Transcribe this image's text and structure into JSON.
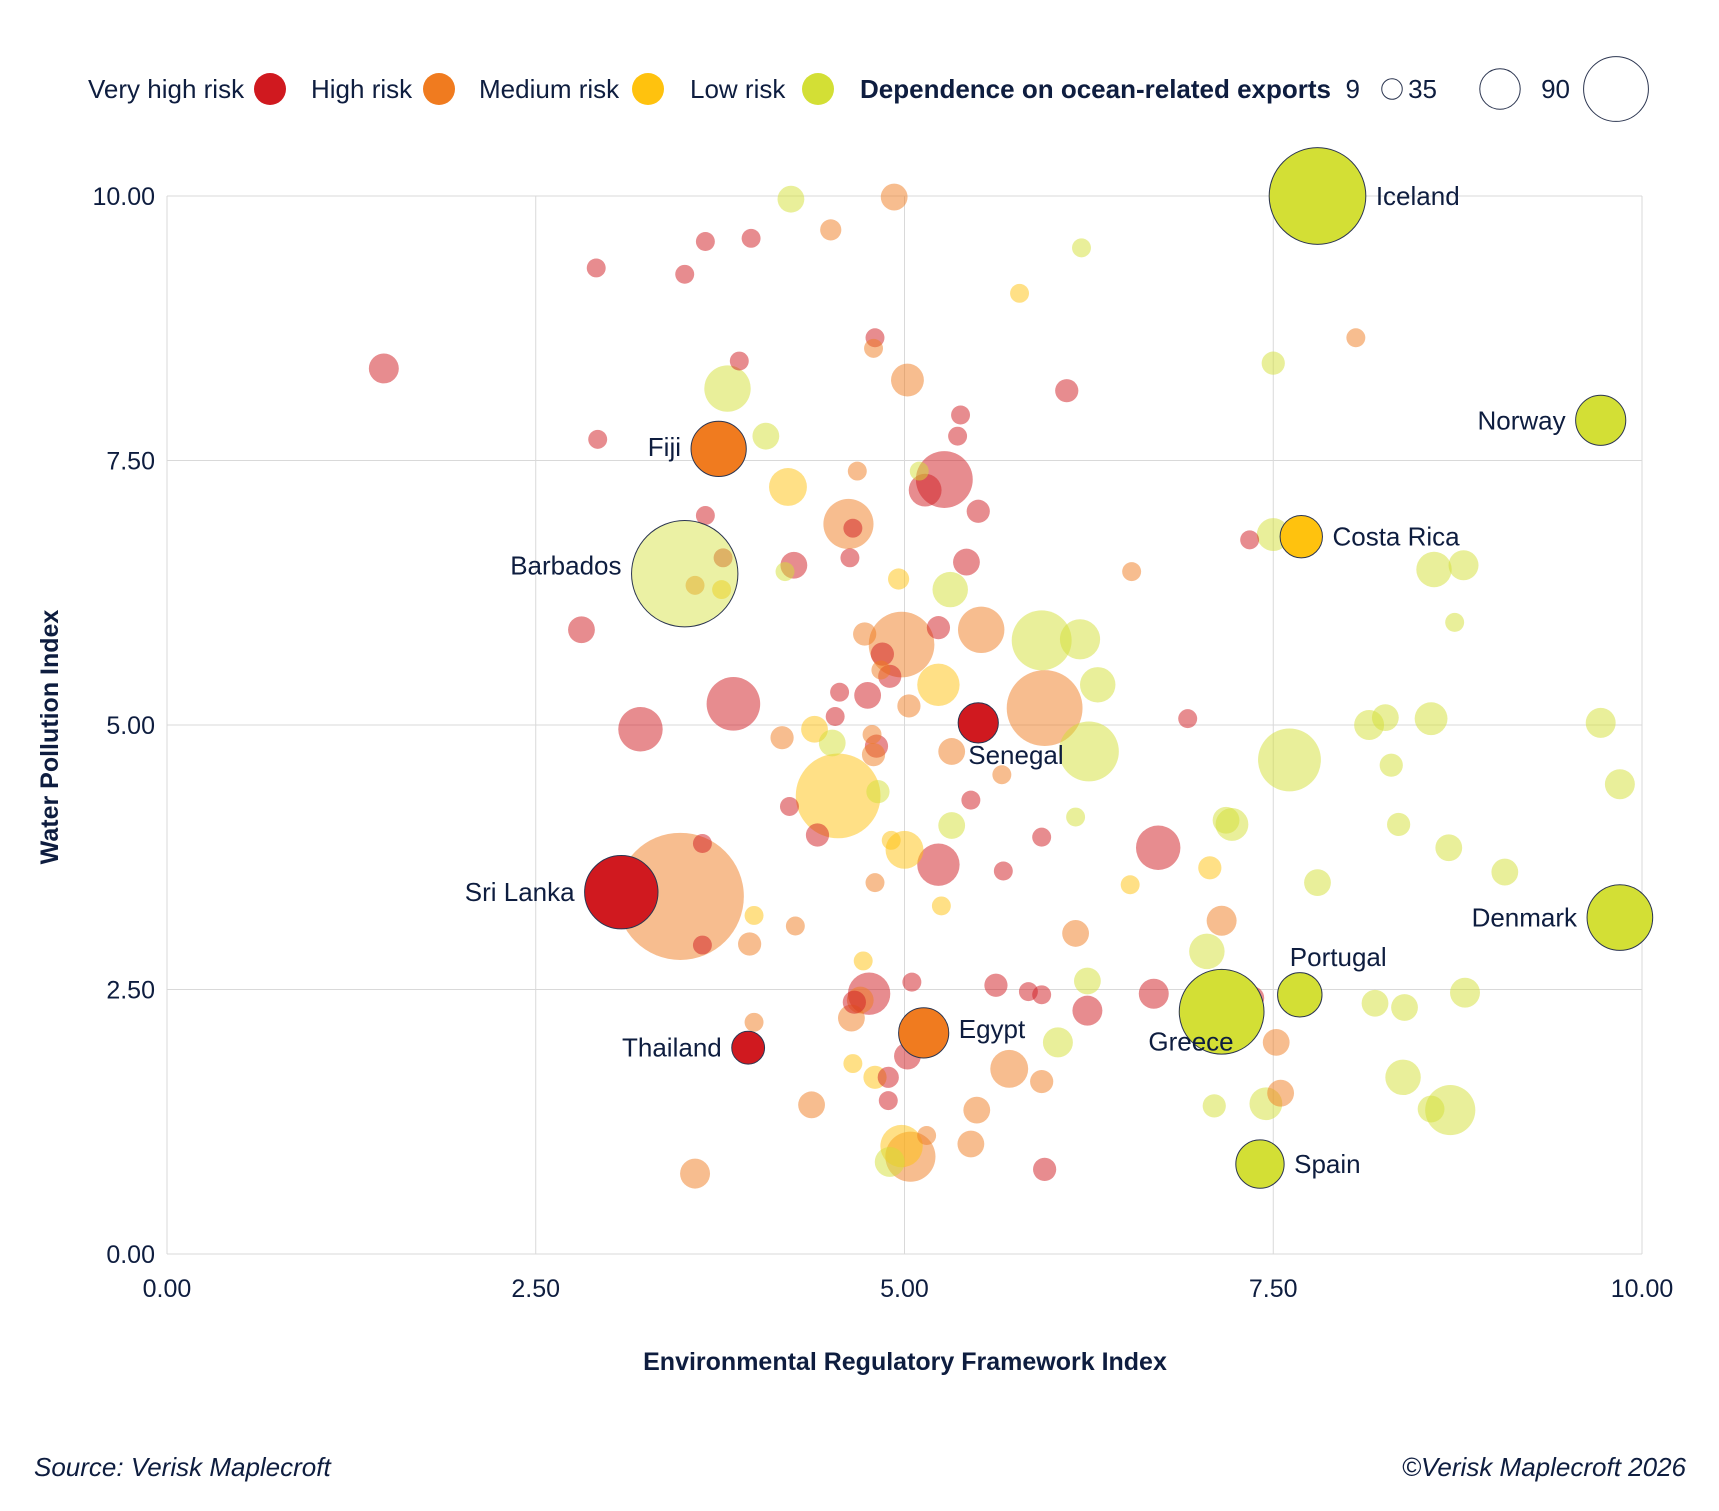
{
  "legend": {
    "risk_levels": [
      {
        "label": "Very high risk",
        "color": "#d0191f"
      },
      {
        "label": "High risk",
        "color": "#f07b1f"
      },
      {
        "label": "Medium risk",
        "color": "#ffc20e"
      },
      {
        "label": "Low risk",
        "color": "#d3df35"
      }
    ],
    "size_title": "Dependence on ocean-related exports",
    "size_values": [
      9,
      35,
      90
    ]
  },
  "chart_data": {
    "type": "scatter",
    "subtype": "bubble",
    "xlabel": "Environmental Regulatory Framework Index",
    "ylabel": "Water Pollution Index",
    "xlim": [
      0,
      10
    ],
    "ylim": [
      0,
      10
    ],
    "xticks": [
      "0.00",
      "2.50",
      "5.00",
      "7.50",
      "10.00"
    ],
    "yticks": [
      "0.00",
      "2.50",
      "5.00",
      "7.50",
      "10.00"
    ],
    "grid": true,
    "legend_position": "top",
    "highlighted": [
      {
        "label": "Iceland",
        "x": 7.8,
        "y": 10.0,
        "size": 52,
        "risk": "low"
      },
      {
        "label": "Norway",
        "x": 9.72,
        "y": 7.88,
        "size": 14,
        "risk": "low"
      },
      {
        "label": "Fiji",
        "x": 3.74,
        "y": 7.61,
        "size": 17,
        "risk": "high"
      },
      {
        "label": "Costa Rica",
        "x": 7.69,
        "y": 6.78,
        "size": 10,
        "risk": "medium"
      },
      {
        "label": "Barbados",
        "x": 3.51,
        "y": 6.43,
        "size": 63,
        "risk": "low"
      },
      {
        "label": "Senegal",
        "x": 5.5,
        "y": 5.02,
        "size": 9,
        "risk": "very_high"
      },
      {
        "label": "Sri Lanka",
        "x": 3.08,
        "y": 3.42,
        "size": 30,
        "risk": "very_high"
      },
      {
        "label": "Denmark",
        "x": 9.85,
        "y": 3.18,
        "size": 24,
        "risk": "low"
      },
      {
        "label": "Portugal",
        "x": 7.68,
        "y": 2.45,
        "size": 11,
        "risk": "low"
      },
      {
        "label": "Greece",
        "x": 7.15,
        "y": 2.29,
        "size": 40,
        "risk": "low"
      },
      {
        "label": "Egypt",
        "x": 5.13,
        "y": 2.09,
        "size": 14,
        "risk": "high"
      },
      {
        "label": "Thailand",
        "x": 3.94,
        "y": 1.95,
        "size": 6,
        "risk": "very_high"
      },
      {
        "label": "Spain",
        "x": 7.41,
        "y": 0.85,
        "size": 13,
        "risk": "low"
      }
    ],
    "background_points": [
      {
        "x": 1.47,
        "y": 8.37,
        "size": 5,
        "risk": "very_high"
      },
      {
        "x": 2.91,
        "y": 9.32,
        "size": 2,
        "risk": "very_high"
      },
      {
        "x": 2.92,
        "y": 7.7,
        "size": 2,
        "risk": "very_high"
      },
      {
        "x": 3.51,
        "y": 9.26,
        "size": 2,
        "risk": "very_high"
      },
      {
        "x": 3.65,
        "y": 9.57,
        "size": 2,
        "risk": "very_high"
      },
      {
        "x": 3.96,
        "y": 9.6,
        "size": 2,
        "risk": "very_high"
      },
      {
        "x": 4.23,
        "y": 9.97,
        "size": 4,
        "risk": "low"
      },
      {
        "x": 4.93,
        "y": 9.99,
        "size": 4,
        "risk": "high"
      },
      {
        "x": 4.5,
        "y": 9.68,
        "size": 2.5,
        "risk": "high"
      },
      {
        "x": 6.2,
        "y": 9.51,
        "size": 2,
        "risk": "low"
      },
      {
        "x": 5.78,
        "y": 9.08,
        "size": 2,
        "risk": "medium"
      },
      {
        "x": 4.8,
        "y": 8.66,
        "size": 2,
        "risk": "very_high"
      },
      {
        "x": 4.79,
        "y": 8.56,
        "size": 2,
        "risk": "high"
      },
      {
        "x": 8.06,
        "y": 8.66,
        "size": 2,
        "risk": "high"
      },
      {
        "x": 3.88,
        "y": 8.44,
        "size": 2,
        "risk": "very_high"
      },
      {
        "x": 7.5,
        "y": 8.42,
        "size": 3,
        "risk": "low"
      },
      {
        "x": 5.02,
        "y": 8.26,
        "size": 6,
        "risk": "high"
      },
      {
        "x": 3.8,
        "y": 8.18,
        "size": 12,
        "risk": "low"
      },
      {
        "x": 6.1,
        "y": 8.16,
        "size": 3,
        "risk": "very_high"
      },
      {
        "x": 5.38,
        "y": 7.93,
        "size": 2,
        "risk": "very_high"
      },
      {
        "x": 4.06,
        "y": 7.73,
        "size": 4,
        "risk": "low"
      },
      {
        "x": 5.36,
        "y": 7.73,
        "size": 2,
        "risk": "very_high"
      },
      {
        "x": 5.27,
        "y": 7.32,
        "size": 18,
        "risk": "very_high"
      },
      {
        "x": 5.14,
        "y": 7.22,
        "size": 6,
        "risk": "very_high"
      },
      {
        "x": 4.21,
        "y": 7.25,
        "size": 8,
        "risk": "medium"
      },
      {
        "x": 4.68,
        "y": 7.4,
        "size": 2,
        "risk": "high"
      },
      {
        "x": 5.1,
        "y": 7.4,
        "size": 2,
        "risk": "low"
      },
      {
        "x": 3.65,
        "y": 6.98,
        "size": 2,
        "risk": "very_high"
      },
      {
        "x": 5.5,
        "y": 7.02,
        "size": 3,
        "risk": "very_high"
      },
      {
        "x": 4.62,
        "y": 6.9,
        "size": 14,
        "risk": "high"
      },
      {
        "x": 4.65,
        "y": 6.86,
        "size": 2,
        "risk": "very_high"
      },
      {
        "x": 7.34,
        "y": 6.75,
        "size": 2,
        "risk": "very_high"
      },
      {
        "x": 7.5,
        "y": 6.8,
        "size": 6,
        "risk": "low"
      },
      {
        "x": 3.77,
        "y": 6.58,
        "size": 2,
        "risk": "very_high"
      },
      {
        "x": 4.25,
        "y": 6.51,
        "size": 4,
        "risk": "very_high"
      },
      {
        "x": 4.19,
        "y": 6.45,
        "size": 2,
        "risk": "low"
      },
      {
        "x": 4.63,
        "y": 6.58,
        "size": 2,
        "risk": "very_high"
      },
      {
        "x": 5.42,
        "y": 6.54,
        "size": 4,
        "risk": "very_high"
      },
      {
        "x": 6.54,
        "y": 6.45,
        "size": 2,
        "risk": "high"
      },
      {
        "x": 8.59,
        "y": 6.47,
        "size": 7,
        "risk": "low"
      },
      {
        "x": 8.79,
        "y": 6.51,
        "size": 5,
        "risk": "low"
      },
      {
        "x": 3.58,
        "y": 6.32,
        "size": 2,
        "risk": "high"
      },
      {
        "x": 3.76,
        "y": 6.28,
        "size": 2,
        "risk": "medium"
      },
      {
        "x": 4.96,
        "y": 6.38,
        "size": 2.5,
        "risk": "medium"
      },
      {
        "x": 5.31,
        "y": 6.28,
        "size": 7,
        "risk": "low"
      },
      {
        "x": 8.73,
        "y": 5.97,
        "size": 2,
        "risk": "low"
      },
      {
        "x": 2.81,
        "y": 5.9,
        "size": 4,
        "risk": "very_high"
      },
      {
        "x": 4.98,
        "y": 5.76,
        "size": 24,
        "risk": "high"
      },
      {
        "x": 4.73,
        "y": 5.86,
        "size": 3,
        "risk": "high"
      },
      {
        "x": 5.23,
        "y": 5.92,
        "size": 3,
        "risk": "very_high"
      },
      {
        "x": 5.52,
        "y": 5.9,
        "size": 12,
        "risk": "high"
      },
      {
        "x": 5.93,
        "y": 5.8,
        "size": 20,
        "risk": "low"
      },
      {
        "x": 6.19,
        "y": 5.81,
        "size": 9,
        "risk": "low"
      },
      {
        "x": 4.85,
        "y": 5.67,
        "size": 3,
        "risk": "very_high"
      },
      {
        "x": 4.84,
        "y": 5.52,
        "size": 2,
        "risk": "high"
      },
      {
        "x": 4.9,
        "y": 5.46,
        "size": 3,
        "risk": "very_high"
      },
      {
        "x": 5.23,
        "y": 5.38,
        "size": 10,
        "risk": "medium"
      },
      {
        "x": 6.31,
        "y": 5.38,
        "size": 7,
        "risk": "low"
      },
      {
        "x": 4.56,
        "y": 5.31,
        "size": 2,
        "risk": "very_high"
      },
      {
        "x": 4.75,
        "y": 5.28,
        "size": 4,
        "risk": "very_high"
      },
      {
        "x": 5.03,
        "y": 5.18,
        "size": 3,
        "risk": "high"
      },
      {
        "x": 3.84,
        "y": 5.2,
        "size": 16,
        "risk": "very_high"
      },
      {
        "x": 5.95,
        "y": 5.16,
        "size": 32,
        "risk": "high"
      },
      {
        "x": 4.53,
        "y": 5.08,
        "size": 2,
        "risk": "very_high"
      },
      {
        "x": 3.21,
        "y": 4.96,
        "size": 11,
        "risk": "very_high"
      },
      {
        "x": 4.17,
        "y": 4.88,
        "size": 3,
        "risk": "high"
      },
      {
        "x": 4.39,
        "y": 4.96,
        "size": 4,
        "risk": "medium"
      },
      {
        "x": 4.51,
        "y": 4.83,
        "size": 4,
        "risk": "low"
      },
      {
        "x": 4.78,
        "y": 4.91,
        "size": 2,
        "risk": "high"
      },
      {
        "x": 4.81,
        "y": 4.8,
        "size": 3,
        "risk": "very_high"
      },
      {
        "x": 4.79,
        "y": 4.72,
        "size": 3,
        "risk": "high"
      },
      {
        "x": 5.32,
        "y": 4.75,
        "size": 4,
        "risk": "high"
      },
      {
        "x": 5.66,
        "y": 4.53,
        "size": 2,
        "risk": "high"
      },
      {
        "x": 6.25,
        "y": 4.75,
        "size": 20,
        "risk": "low"
      },
      {
        "x": 6.92,
        "y": 5.06,
        "size": 2,
        "risk": "very_high"
      },
      {
        "x": 7.61,
        "y": 4.67,
        "size": 22,
        "risk": "low"
      },
      {
        "x": 8.15,
        "y": 5.0,
        "size": 5,
        "risk": "low"
      },
      {
        "x": 8.26,
        "y": 5.07,
        "size": 4,
        "risk": "low"
      },
      {
        "x": 8.57,
        "y": 5.06,
        "size": 6,
        "risk": "low"
      },
      {
        "x": 9.72,
        "y": 5.02,
        "size": 5,
        "risk": "low"
      },
      {
        "x": 8.3,
        "y": 4.62,
        "size": 3,
        "risk": "low"
      },
      {
        "x": 9.85,
        "y": 4.44,
        "size": 5,
        "risk": "low"
      },
      {
        "x": 4.55,
        "y": 4.33,
        "size": 40,
        "risk": "medium"
      },
      {
        "x": 4.82,
        "y": 4.37,
        "size": 3,
        "risk": "low"
      },
      {
        "x": 5.45,
        "y": 4.29,
        "size": 2,
        "risk": "very_high"
      },
      {
        "x": 4.22,
        "y": 4.23,
        "size": 2,
        "risk": "very_high"
      },
      {
        "x": 6.16,
        "y": 4.13,
        "size": 2,
        "risk": "low"
      },
      {
        "x": 5.32,
        "y": 4.05,
        "size": 4,
        "risk": "low"
      },
      {
        "x": 7.18,
        "y": 4.1,
        "size": 4,
        "risk": "low"
      },
      {
        "x": 7.22,
        "y": 4.06,
        "size": 6,
        "risk": "low"
      },
      {
        "x": 8.35,
        "y": 4.06,
        "size": 3,
        "risk": "low"
      },
      {
        "x": 4.41,
        "y": 3.96,
        "size": 3,
        "risk": "very_high"
      },
      {
        "x": 5.93,
        "y": 3.94,
        "size": 2,
        "risk": "very_high"
      },
      {
        "x": 3.63,
        "y": 3.88,
        "size": 2,
        "risk": "very_high"
      },
      {
        "x": 4.91,
        "y": 3.91,
        "size": 2,
        "risk": "medium"
      },
      {
        "x": 5.0,
        "y": 3.82,
        "size": 8,
        "risk": "medium"
      },
      {
        "x": 6.72,
        "y": 3.84,
        "size": 11,
        "risk": "very_high"
      },
      {
        "x": 8.69,
        "y": 3.84,
        "size": 4,
        "risk": "low"
      },
      {
        "x": 5.23,
        "y": 3.68,
        "size": 10,
        "risk": "very_high"
      },
      {
        "x": 7.07,
        "y": 3.65,
        "size": 3,
        "risk": "medium"
      },
      {
        "x": 5.67,
        "y": 3.62,
        "size": 2,
        "risk": "very_high"
      },
      {
        "x": 9.07,
        "y": 3.61,
        "size": 4,
        "risk": "low"
      },
      {
        "x": 3.48,
        "y": 3.38,
        "size": 90,
        "risk": "high"
      },
      {
        "x": 4.8,
        "y": 3.51,
        "size": 2,
        "risk": "high"
      },
      {
        "x": 6.53,
        "y": 3.49,
        "size": 2,
        "risk": "medium"
      },
      {
        "x": 7.8,
        "y": 3.51,
        "size": 4,
        "risk": "low"
      },
      {
        "x": 5.25,
        "y": 3.29,
        "size": 2,
        "risk": "medium"
      },
      {
        "x": 3.98,
        "y": 3.2,
        "size": 2,
        "risk": "medium"
      },
      {
        "x": 4.26,
        "y": 3.1,
        "size": 2,
        "risk": "high"
      },
      {
        "x": 7.15,
        "y": 3.15,
        "size": 5,
        "risk": "high"
      },
      {
        "x": 6.16,
        "y": 3.03,
        "size": 4,
        "risk": "high"
      },
      {
        "x": 3.63,
        "y": 2.92,
        "size": 2,
        "risk": "very_high"
      },
      {
        "x": 3.95,
        "y": 2.93,
        "size": 3,
        "risk": "high"
      },
      {
        "x": 7.05,
        "y": 2.86,
        "size": 7,
        "risk": "low"
      },
      {
        "x": 4.72,
        "y": 2.77,
        "size": 2,
        "risk": "medium"
      },
      {
        "x": 5.05,
        "y": 2.57,
        "size": 2,
        "risk": "very_high"
      },
      {
        "x": 5.62,
        "y": 2.54,
        "size": 3,
        "risk": "very_high"
      },
      {
        "x": 6.24,
        "y": 2.58,
        "size": 4,
        "risk": "low"
      },
      {
        "x": 4.76,
        "y": 2.46,
        "size": 10,
        "risk": "very_high"
      },
      {
        "x": 4.66,
        "y": 2.38,
        "size": 3,
        "risk": "very_high"
      },
      {
        "x": 4.7,
        "y": 2.4,
        "size": 4,
        "risk": "high"
      },
      {
        "x": 5.84,
        "y": 2.48,
        "size": 2,
        "risk": "very_high"
      },
      {
        "x": 5.93,
        "y": 2.45,
        "size": 2,
        "risk": "very_high"
      },
      {
        "x": 6.69,
        "y": 2.46,
        "size": 5,
        "risk": "very_high"
      },
      {
        "x": 7.36,
        "y": 2.42,
        "size": 3,
        "risk": "very_high"
      },
      {
        "x": 8.19,
        "y": 2.37,
        "size": 4,
        "risk": "low"
      },
      {
        "x": 8.39,
        "y": 2.33,
        "size": 4,
        "risk": "low"
      },
      {
        "x": 8.8,
        "y": 2.47,
        "size": 5,
        "risk": "low"
      },
      {
        "x": 6.24,
        "y": 2.3,
        "size": 5,
        "risk": "very_high"
      },
      {
        "x": 3.98,
        "y": 2.19,
        "size": 2,
        "risk": "high"
      },
      {
        "x": 4.64,
        "y": 2.23,
        "size": 4,
        "risk": "high"
      },
      {
        "x": 6.04,
        "y": 2.0,
        "size": 5,
        "risk": "low"
      },
      {
        "x": 7.52,
        "y": 2.0,
        "size": 4,
        "risk": "high"
      },
      {
        "x": 5.02,
        "y": 1.87,
        "size": 4,
        "risk": "very_high"
      },
      {
        "x": 4.65,
        "y": 1.8,
        "size": 2,
        "risk": "medium"
      },
      {
        "x": 5.71,
        "y": 1.75,
        "size": 8,
        "risk": "high"
      },
      {
        "x": 4.8,
        "y": 1.67,
        "size": 3,
        "risk": "medium"
      },
      {
        "x": 4.89,
        "y": 1.67,
        "size": 2.5,
        "risk": "very_high"
      },
      {
        "x": 8.38,
        "y": 1.67,
        "size": 7,
        "risk": "low"
      },
      {
        "x": 5.93,
        "y": 1.63,
        "size": 3,
        "risk": "high"
      },
      {
        "x": 7.55,
        "y": 1.52,
        "size": 4,
        "risk": "high"
      },
      {
        "x": 4.37,
        "y": 1.41,
        "size": 4,
        "risk": "high"
      },
      {
        "x": 4.89,
        "y": 1.45,
        "size": 2,
        "risk": "very_high"
      },
      {
        "x": 7.1,
        "y": 1.4,
        "size": 3,
        "risk": "low"
      },
      {
        "x": 7.45,
        "y": 1.42,
        "size": 6,
        "risk": "low"
      },
      {
        "x": 5.49,
        "y": 1.36,
        "size": 4,
        "risk": "high"
      },
      {
        "x": 8.57,
        "y": 1.37,
        "size": 4,
        "risk": "low"
      },
      {
        "x": 8.7,
        "y": 1.36,
        "size": 14,
        "risk": "low"
      },
      {
        "x": 5.15,
        "y": 1.12,
        "size": 2,
        "risk": "high"
      },
      {
        "x": 4.98,
        "y": 1.02,
        "size": 10,
        "risk": "medium"
      },
      {
        "x": 5.45,
        "y": 1.04,
        "size": 4,
        "risk": "high"
      },
      {
        "x": 4.9,
        "y": 0.87,
        "size": 5,
        "risk": "low"
      },
      {
        "x": 5.04,
        "y": 0.92,
        "size": 14,
        "risk": "high"
      },
      {
        "x": 3.58,
        "y": 0.76,
        "size": 5,
        "risk": "high"
      },
      {
        "x": 5.95,
        "y": 0.8,
        "size": 3,
        "risk": "very_high"
      }
    ]
  },
  "footer": {
    "source": "Source: Verisk Maplecroft",
    "copyright": "©Verisk Maplecroft 2026"
  }
}
